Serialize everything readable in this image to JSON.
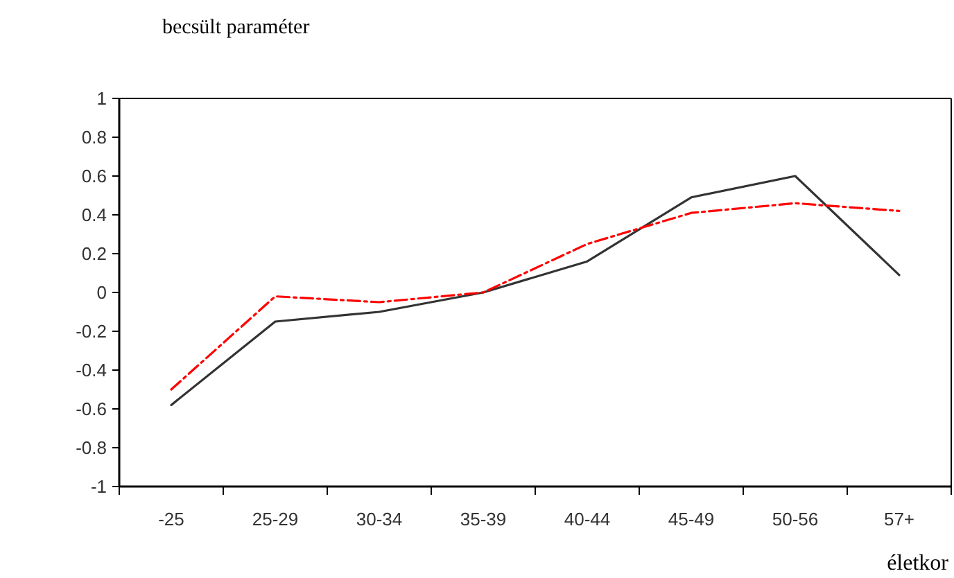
{
  "chart_data": {
    "type": "line",
    "title": "becsült paraméter",
    "xlabel": "életkor",
    "categories": [
      "-25",
      "25-29",
      "30-34",
      "35-39",
      "40-44",
      "45-49",
      "50-56",
      "57+"
    ],
    "series": [
      {
        "color": "#333333",
        "line_style": "solid",
        "values": [
          -0.58,
          -0.15,
          -0.1,
          0,
          0.16,
          0.49,
          0.6,
          0.09
        ]
      },
      {
        "color": "#ff0000",
        "line_style": "dashed",
        "values": [
          -0.5,
          -0.02,
          -0.05,
          0,
          0.25,
          0.41,
          0.46,
          0.42
        ]
      }
    ],
    "ylim": [
      -1,
      1
    ],
    "yticks": [
      {
        "value": -1,
        "label": "-1"
      },
      {
        "value": -0.8,
        "label": "-0.8"
      },
      {
        "value": -0.6,
        "label": "-0.6"
      },
      {
        "value": -0.4,
        "label": "-0.4"
      },
      {
        "value": -0.2,
        "label": "-0.2"
      },
      0,
      {
        "value": 0.2,
        "label": "0.2"
      },
      {
        "value": 0.4,
        "label": "0.4"
      },
      {
        "value": 0.6,
        "label": "0.6"
      },
      {
        "value": 0.8,
        "label": "0.8"
      },
      1
    ],
    "grid": false,
    "marker": "none"
  }
}
